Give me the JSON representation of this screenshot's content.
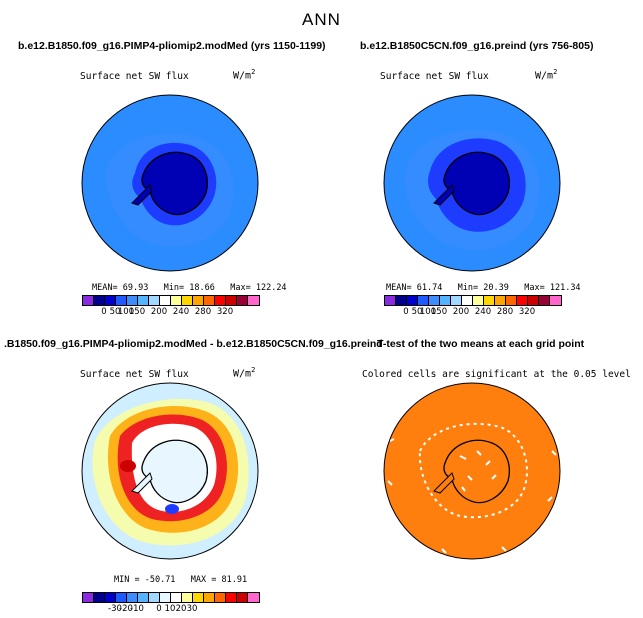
{
  "figure": {
    "title": "ANN"
  },
  "colors": {
    "abs_scale": [
      "#8a2be2",
      "#00008b",
      "#0000cd",
      "#1e5bff",
      "#3c8cff",
      "#55b4ff",
      "#a0d8ff",
      "#ffffff",
      "#ffff99",
      "#ffd700",
      "#ffa500",
      "#ff6600",
      "#ff0000",
      "#cc0000",
      "#990033",
      "#ff66cc"
    ],
    "diff_scale": [
      "#8a2be2",
      "#00008b",
      "#0000cd",
      "#1e5bff",
      "#3c8cff",
      "#55b4ff",
      "#a0d8ff",
      "#e8f6ff",
      "#ffffff",
      "#ffff99",
      "#ffd700",
      "#ffa500",
      "#ff6600",
      "#ff0000",
      "#cc0000",
      "#ff66cc"
    ],
    "ttest_fill": "#ff7f0e"
  },
  "chart_data": [
    {
      "type": "heatmap",
      "title": "b.e12.B1850.f09_g16.PIMP4-pliomip2.modMed (yrs 1150-1199)",
      "subtitle": "Surface net SW flux",
      "units": "W/m",
      "units_exp": "2",
      "stats": {
        "mean_label": "MEAN=",
        "mean": "69.93",
        "min_label": "Min=",
        "min": "18.66",
        "max_label": "Max=",
        "max": "122.24"
      },
      "colorbar_ticks": [
        "0",
        "50",
        "100",
        "150",
        "200",
        "240",
        "280",
        "320"
      ],
      "colorbar_tick_positions": [
        0.125,
        0.1875,
        0.25,
        0.3125,
        0.4375,
        0.5625,
        0.6875,
        0.8125
      ]
    },
    {
      "type": "heatmap",
      "title": "b.e12.B1850C5CN.f09_g16.preind (yrs 756-805)",
      "subtitle": "Surface net SW flux",
      "units": "W/m",
      "units_exp": "2",
      "stats": {
        "mean_label": "MEAN=",
        "mean": "61.74",
        "min_label": "Min=",
        "min": "20.39",
        "max_label": "Max=",
        "max": "121.34"
      },
      "colorbar_ticks": [
        "0",
        "50",
        "100",
        "150",
        "200",
        "240",
        "280",
        "320"
      ],
      "colorbar_tick_positions": [
        0.125,
        0.1875,
        0.25,
        0.3125,
        0.4375,
        0.5625,
        0.6875,
        0.8125
      ]
    },
    {
      "type": "heatmap",
      "title": ".B1850.f09_g16.PIMP4-pliomip2.modMed - b.e12.B1850C5CN.f09_g16.preind",
      "subtitle": "Surface net SW flux",
      "units": "W/m",
      "units_exp": "2",
      "stats": {
        "min_label": "MIN =",
        "min": "-50.71",
        "max_label": "MAX =",
        "max": "81.91"
      },
      "colorbar_ticks": [
        "-30",
        "-20",
        "-10",
        "0",
        "10",
        "20",
        "30"
      ],
      "colorbar_tick_positions": [
        0.1875,
        0.25,
        0.3125,
        0.4375,
        0.5,
        0.5625,
        0.625
      ]
    },
    {
      "type": "heatmap",
      "title": "T-test of the two means at each grid point",
      "subtitle": "Colored cells are significant at the 0.05 level"
    }
  ]
}
